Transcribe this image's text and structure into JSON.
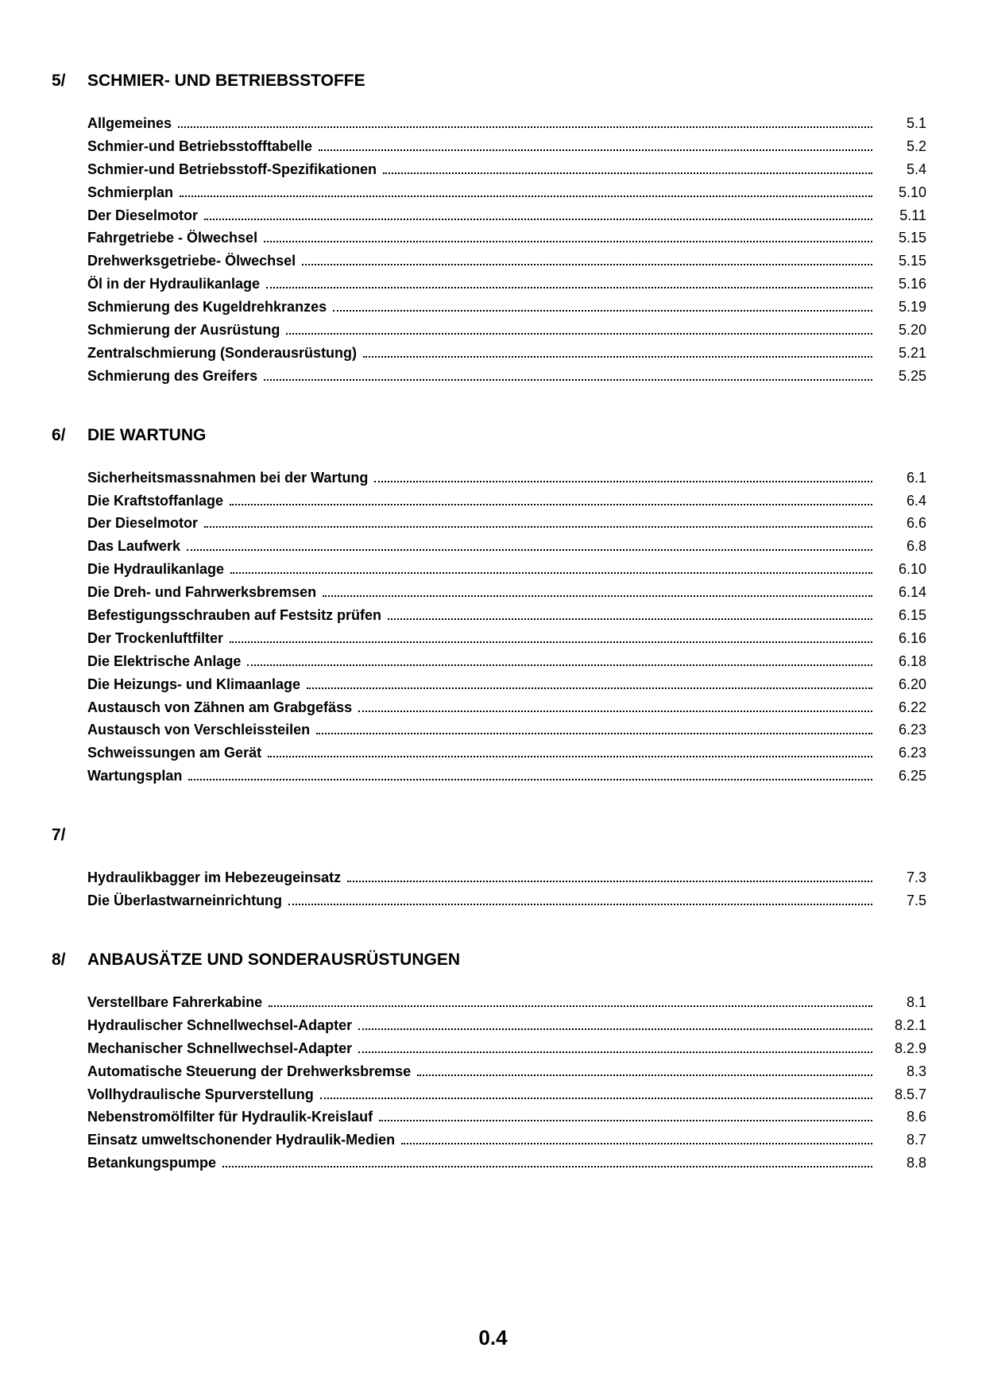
{
  "page_number": "0.4",
  "sections": [
    {
      "number": "5/",
      "title": "SCHMIER- UND BETRIEBSSTOFFE",
      "entries": [
        {
          "label": "Allgemeines",
          "page": "5.1"
        },
        {
          "label": "Schmier-und Betriebsstofftabelle",
          "page": "5.2"
        },
        {
          "label": "Schmier-und Betriebsstoff-Spezifikationen",
          "page": "5.4"
        },
        {
          "label": "Schmierplan",
          "page": "5.10"
        },
        {
          "label": "Der Dieselmotor",
          "page": "5.11"
        },
        {
          "label": "Fahrgetriebe - Ölwechsel",
          "page": "5.15"
        },
        {
          "label": "Drehwerksgetriebe- Ölwechsel",
          "page": "5.15"
        },
        {
          "label": "Öl in der Hydraulikanlage",
          "page": "5.16"
        },
        {
          "label": "Schmierung des Kugeldrehkranzes",
          "page": "5.19"
        },
        {
          "label": "Schmierung der Ausrüstung",
          "page": "5.20"
        },
        {
          "label": "Zentralschmierung (Sonderausrüstung)",
          "page": "5.21"
        },
        {
          "label": "Schmierung des Greifers",
          "page": "5.25"
        }
      ]
    },
    {
      "number": "6/",
      "title": "DIE WARTUNG",
      "entries": [
        {
          "label": "Sicherheitsmassnahmen bei der Wartung",
          "page": "6.1"
        },
        {
          "label": "Die Kraftstoffanlage",
          "page": "6.4"
        },
        {
          "label": "Der Dieselmotor",
          "page": "6.6"
        },
        {
          "label": "Das Laufwerk",
          "page": "6.8"
        },
        {
          "label": "Die Hydraulikanlage",
          "page": "6.10"
        },
        {
          "label": "Die Dreh- und Fahrwerksbremsen",
          "page": "6.14"
        },
        {
          "label": "Befestigungsschrauben auf Festsitz prüfen",
          "page": "6.15"
        },
        {
          "label": "Der Trockenluftfilter",
          "page": "6.16"
        },
        {
          "label": "Die Elektrische Anlage",
          "page": "6.18"
        },
        {
          "label": "Die Heizungs- und Klimaanlage",
          "page": "6.20"
        },
        {
          "label": "Austausch von Zähnen am Grabgefäss",
          "page": "6.22"
        },
        {
          "label": "Austausch von Verschleissteilen",
          "page": "6.23"
        },
        {
          "label": "Schweissungen am Gerät",
          "page": "6.23"
        },
        {
          "label": "Wartungsplan",
          "page": "6.25"
        }
      ]
    },
    {
      "number": "7/",
      "title": "",
      "entries": [
        {
          "label": "Hydraulikbagger im Hebezeugeinsatz",
          "page": "7.3"
        },
        {
          "label": "Die Überlastwarneinrichtung",
          "page": "7.5"
        }
      ]
    },
    {
      "number": "8/",
      "title": "ANBAUSÄTZE UND SONDERAUSRÜSTUNGEN",
      "entries": [
        {
          "label": "Verstellbare Fahrerkabine",
          "page": "8.1"
        },
        {
          "label": "Hydraulischer Schnellwechsel-Adapter",
          "page": "8.2.1"
        },
        {
          "label": "Mechanischer Schnellwechsel-Adapter",
          "page": "8.2.9"
        },
        {
          "label": "Automatische Steuerung der Drehwerksbremse",
          "page": "8.3"
        },
        {
          "label": "Vollhydraulische Spurverstellung",
          "page": "8.5.7"
        },
        {
          "label": "Nebenstromölfilter für Hydraulik-Kreislauf",
          "page": "8.6"
        },
        {
          "label": "Einsatz umweltschonender Hydraulik-Medien",
          "page": "8.7"
        },
        {
          "label": "Betankungspumpe",
          "page": "8.8"
        }
      ]
    }
  ]
}
